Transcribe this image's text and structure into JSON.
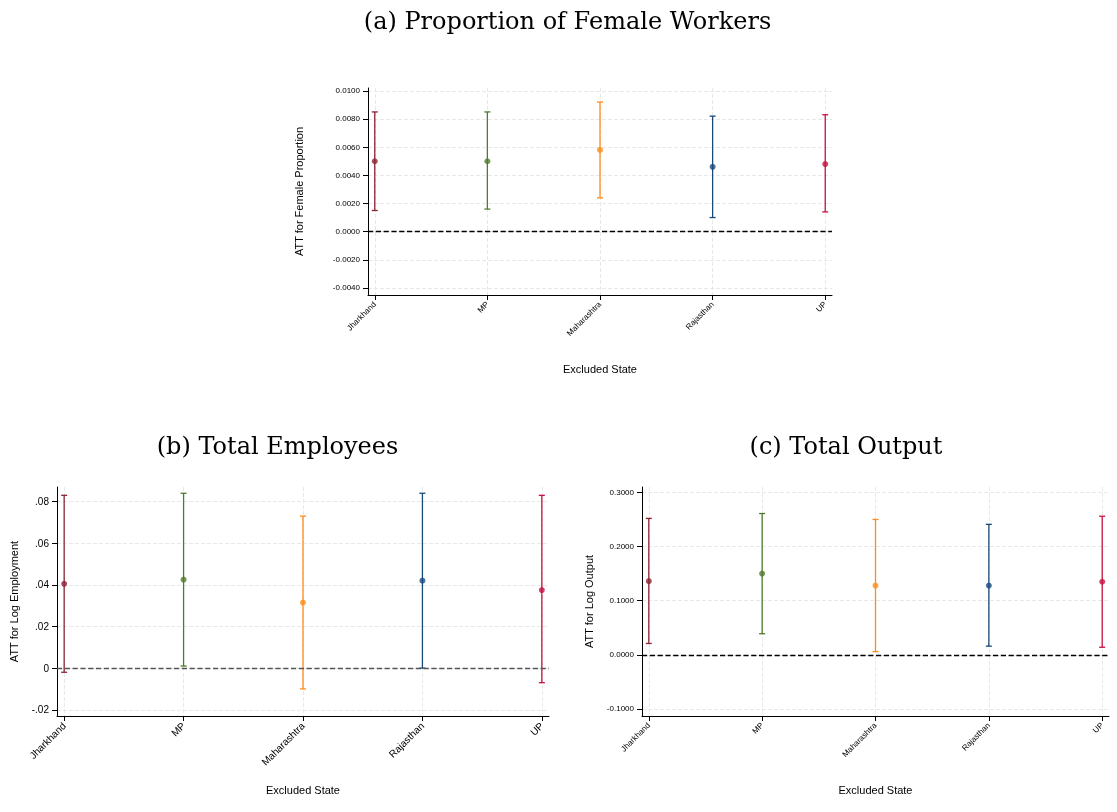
{
  "chart_data": [
    {
      "type": "scatter",
      "title": "(a) Proportion of Female Workers",
      "xlabel": "Excluded State",
      "ylabel": "ATT for Female Proportion",
      "categories": [
        "Jharkhand",
        "MP",
        "Maharashtra",
        "Rajasthan",
        "UP"
      ],
      "values": [
        0.005,
        0.005,
        0.0058,
        0.0046,
        0.0048
      ],
      "colors": [
        "#8c2432",
        "#4e7a2c",
        "#ff8c1a",
        "#1a4a7a",
        "#c8103e"
      ],
      "errors": [
        [
          0.0015,
          0.0085
        ],
        [
          0.0016,
          0.0085
        ],
        [
          0.0024,
          0.0092
        ],
        [
          0.001,
          0.0082
        ],
        [
          0.0014,
          0.0083
        ]
      ],
      "ylim": [
        -0.0045,
        0.0102
      ],
      "yticks": [
        {
          "value": -0.004,
          "label": "-0.0040"
        },
        {
          "value": -0.002,
          "label": "-0.0020"
        },
        {
          "value": 0,
          "label": "0.0000"
        },
        {
          "value": 0.002,
          "label": "0.0020"
        },
        {
          "value": 0.004,
          "label": "0.0040"
        },
        {
          "value": 0.006,
          "label": "0.0060"
        },
        {
          "value": 0.008,
          "label": "0.0080"
        },
        {
          "value": 0.01,
          "label": "0.0100"
        }
      ],
      "ref_lines": [
        {
          "axis": "y",
          "value": 0,
          "color": "#000000",
          "line_style": "dashed"
        }
      ],
      "grid": true,
      "marker": "circle"
    },
    {
      "type": "scatter",
      "title": "(b) Total Employees",
      "xlabel": "Excluded State",
      "ylabel": "ATT for Log Employment",
      "categories": [
        "Jharkhand",
        "MP",
        "Maharashtra",
        "Rajasthan",
        "UP"
      ],
      "values": [
        0.0405,
        0.0425,
        0.0315,
        0.042,
        0.0375
      ],
      "colors": [
        "#8c2432",
        "#4e7a2c",
        "#ff8c1a",
        "#1a4a7a",
        "#c8103e"
      ],
      "errors": [
        [
          -0.002,
          0.083
        ],
        [
          0.001,
          0.084
        ],
        [
          -0.01,
          0.073
        ],
        [
          0.0,
          0.084
        ],
        [
          -0.007,
          0.083
        ]
      ],
      "ylim": [
        -0.023,
        0.087
      ],
      "yticks": [
        {
          "value": -0.02,
          "label": "-.02"
        },
        0,
        {
          "value": 0.02,
          "label": ".02"
        },
        {
          "value": 0.04,
          "label": ".04"
        },
        {
          "value": 0.06,
          "label": ".06"
        },
        {
          "value": 0.08,
          "label": ".08"
        }
      ],
      "ref_lines": [
        {
          "axis": "y",
          "value": 0,
          "color": "#555555",
          "line_style": "dashed"
        }
      ],
      "grid": true,
      "marker": "circle"
    },
    {
      "type": "scatter",
      "title": "(c) Total Output",
      "xlabel": "Excluded State",
      "ylabel": "ATT for Log Output",
      "categories": [
        "Jharkhand",
        "MP",
        "Maharashtra",
        "Rajasthan",
        "UP"
      ],
      "values": [
        0.136,
        0.15,
        0.128,
        0.128,
        0.135
      ],
      "colors": [
        "#8c2432",
        "#4e7a2c",
        "#ff8c1a",
        "#1a4a7a",
        "#c8103e"
      ],
      "errors": [
        [
          0.021,
          0.252
        ],
        [
          0.039,
          0.261
        ],
        [
          0.006,
          0.25
        ],
        [
          0.016,
          0.241
        ],
        [
          0.014,
          0.256
        ]
      ],
      "ylim": [
        -0.113,
        0.31
      ],
      "yticks": [
        {
          "value": -0.1,
          "label": "-0.1000"
        },
        {
          "value": 0,
          "label": "0.0000"
        },
        {
          "value": 0.1,
          "label": "0.1000"
        },
        {
          "value": 0.2,
          "label": "0.2000"
        },
        {
          "value": 0.3,
          "label": "0.3000"
        }
      ],
      "ref_lines": [
        {
          "axis": "y",
          "value": 0,
          "color": "#000000",
          "line_style": "dashed"
        }
      ],
      "grid": true,
      "marker": "circle"
    }
  ]
}
